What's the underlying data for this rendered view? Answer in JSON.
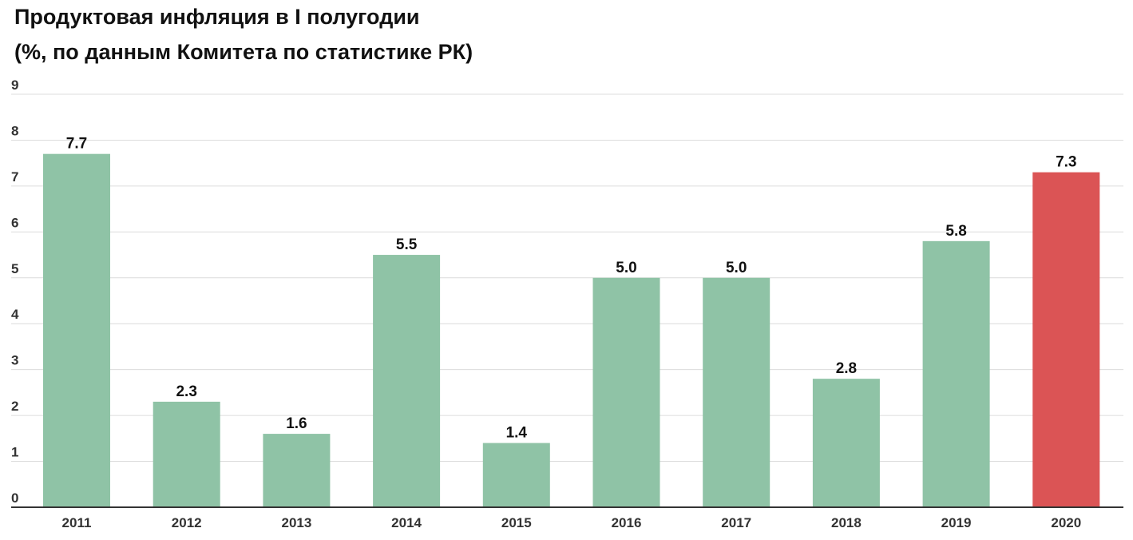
{
  "header": {
    "title_line1": "Продуктовая инфляция в I полугодии",
    "title_line2": "(%, по данным Комитета по статистике РК)"
  },
  "colors": {
    "bar_default": "#8fc3a6",
    "bar_highlight": "#db5455",
    "grid": "#dcdcdc",
    "axis": "#333333"
  },
  "chart_data": {
    "type": "bar",
    "categories": [
      "2011",
      "2012",
      "2013",
      "2014",
      "2015",
      "2016",
      "2017",
      "2018",
      "2019",
      "2020"
    ],
    "values": [
      7.7,
      2.3,
      1.6,
      5.5,
      1.4,
      5.0,
      5.0,
      2.8,
      5.8,
      7.3
    ],
    "value_labels": [
      "7.7",
      "2.3",
      "1.6",
      "5.5",
      "1.4",
      "5.0",
      "5.0",
      "2.8",
      "5.8",
      "7.3"
    ],
    "highlight_category": "2020",
    "ylim": [
      0,
      9
    ],
    "yticks": [
      "0",
      "1",
      "2",
      "3",
      "4",
      "5",
      "6",
      "7",
      "8",
      "9"
    ],
    "grid": true,
    "xlabel": "",
    "ylabel": ""
  }
}
